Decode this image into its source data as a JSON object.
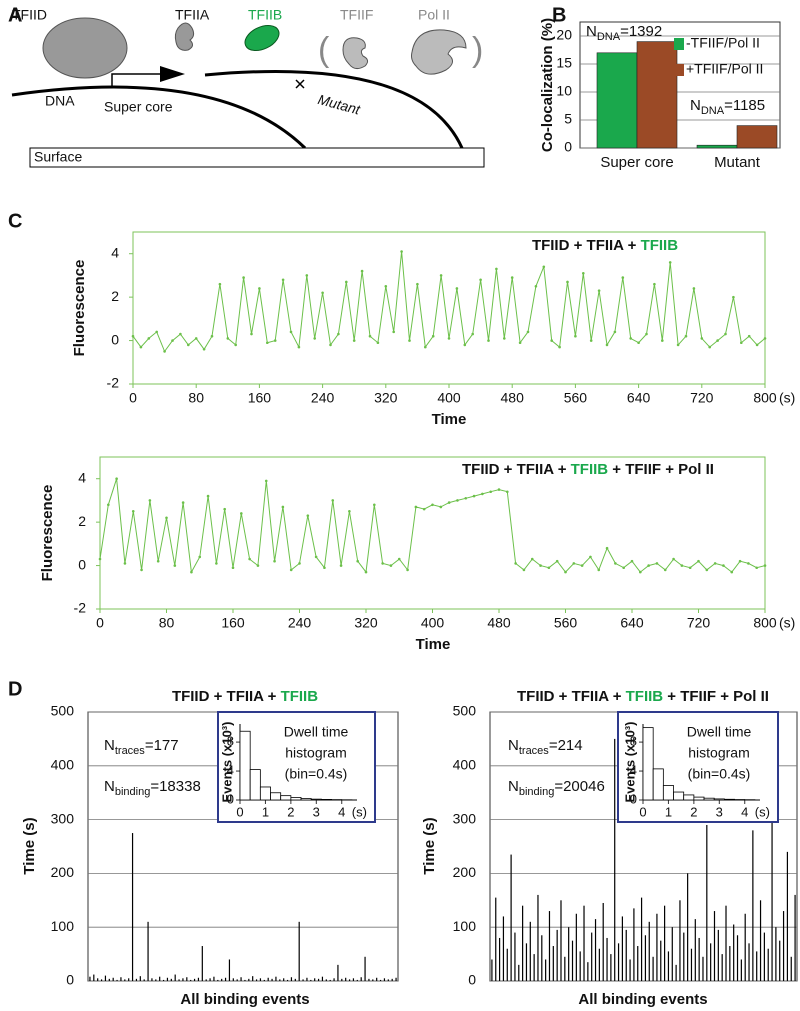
{
  "panel_labels": [
    "A",
    "B",
    "C",
    "D"
  ],
  "diagram": {
    "proteins": [
      {
        "text": "TFIID"
      },
      {
        "text": "TFIIA"
      },
      {
        "text": "TFIIB",
        "color": "#1aa84c"
      },
      {
        "text": "TFIIF",
        "color": "#8a8a8a"
      },
      {
        "text": "Pol II",
        "color": "#8a8a8a"
      }
    ],
    "brackets": [
      "(",
      ")"
    ],
    "dna": "DNA",
    "super_core": "Super core",
    "mutant": "Mutant",
    "surface": "Surface"
  },
  "chart_data": [
    {
      "type": "bar",
      "ylabel": "Co-localization (%)",
      "categories": [
        "Super core",
        "Mutant"
      ],
      "series": [
        {
          "name": "-TFIIF/Pol II",
          "color": "#1aa84c",
          "values": [
            17,
            0.5
          ]
        },
        {
          "name": "+TFIIF/Pol II",
          "color": "#9b4a26",
          "values": [
            19,
            4
          ]
        }
      ],
      "ylim": [
        0,
        22.5
      ],
      "yticks": [
        0,
        5,
        10,
        15,
        20
      ],
      "grid": true,
      "annotations": [
        [
          {
            "text": "N"
          },
          {
            "text": "DNA",
            "sub": true
          },
          {
            "text": "=1392"
          }
        ],
        [
          {
            "text": "N"
          },
          {
            "text": "DNA",
            "sub": true
          },
          {
            "text": "=1185"
          }
        ]
      ]
    },
    {
      "type": "line",
      "title": [
        {
          "text": "TFIID + TFIIA + "
        },
        {
          "text": "TFIIB",
          "color": "#1aa84c"
        }
      ],
      "xlabel": "Time",
      "ylabel": "Fluorescence",
      "x_unit": "(s)",
      "frame_color": "#7cc35a",
      "x": [
        0,
        10,
        20,
        30,
        40,
        50,
        60,
        70,
        80,
        90,
        100,
        110,
        120,
        130,
        140,
        150,
        160,
        170,
        180,
        190,
        200,
        210,
        220,
        230,
        240,
        250,
        260,
        270,
        280,
        290,
        300,
        310,
        320,
        330,
        340,
        350,
        360,
        370,
        380,
        390,
        400,
        410,
        420,
        430,
        440,
        450,
        460,
        470,
        480,
        490,
        500,
        510,
        520,
        530,
        540,
        550,
        560,
        570,
        580,
        590,
        600,
        610,
        620,
        630,
        640,
        650,
        660,
        670,
        680,
        690,
        700,
        710,
        720,
        730,
        740,
        750,
        760,
        770,
        780,
        790,
        800
      ],
      "series": [
        {
          "color": "#6cc04a",
          "values": [
            0.2,
            -0.3,
            0.1,
            0.4,
            -0.5,
            0.0,
            0.3,
            -0.2,
            0.1,
            -0.4,
            0.2,
            2.6,
            0.1,
            -0.2,
            2.9,
            0.3,
            2.4,
            -0.1,
            0.0,
            2.8,
            0.4,
            -0.3,
            3.0,
            0.1,
            2.2,
            -0.2,
            0.3,
            2.7,
            0.0,
            3.2,
            0.2,
            -0.1,
            2.5,
            0.4,
            4.1,
            0.0,
            2.6,
            -0.3,
            0.2,
            3.0,
            0.1,
            2.4,
            -0.2,
            0.3,
            2.8,
            0.0,
            3.3,
            0.1,
            2.9,
            -0.1,
            0.4,
            2.5,
            3.4,
            0.0,
            -0.3,
            2.7,
            0.2,
            3.1,
            0.0,
            2.3,
            -0.2,
            0.4,
            2.9,
            0.1,
            -0.1,
            0.3,
            2.6,
            0.0,
            3.6,
            -0.2,
            0.2,
            2.4,
            0.1,
            -0.3,
            0.0,
            0.3,
            2.0,
            -0.1,
            0.2,
            -0.2,
            0.1
          ]
        }
      ],
      "xlim": [
        0,
        800
      ],
      "xticks": [
        0,
        80,
        160,
        240,
        320,
        400,
        480,
        560,
        640,
        720,
        800
      ],
      "ylim": [
        -2,
        5
      ],
      "yticks": [
        -2,
        0,
        2,
        4
      ]
    },
    {
      "type": "line",
      "title": [
        {
          "text": "TFIID + TFIIA + "
        },
        {
          "text": "TFIIB",
          "color": "#1aa84c"
        },
        {
          "text": " + TFIIF + Pol II"
        }
      ],
      "xlabel": "Time",
      "ylabel": "Fluorescence",
      "x_unit": "(s)",
      "frame_color": "#7cc35a",
      "x": [
        0,
        10,
        20,
        30,
        40,
        50,
        60,
        70,
        80,
        90,
        100,
        110,
        120,
        130,
        140,
        150,
        160,
        170,
        180,
        190,
        200,
        210,
        220,
        230,
        240,
        250,
        260,
        270,
        280,
        290,
        300,
        310,
        320,
        330,
        340,
        350,
        360,
        370,
        380,
        390,
        400,
        410,
        420,
        430,
        440,
        450,
        460,
        470,
        480,
        490,
        500,
        510,
        520,
        530,
        540,
        550,
        560,
        570,
        580,
        590,
        600,
        610,
        620,
        630,
        640,
        650,
        660,
        670,
        680,
        690,
        700,
        710,
        720,
        730,
        740,
        750,
        760,
        770,
        780,
        790,
        800
      ],
      "series": [
        {
          "color": "#6cc04a",
          "values": [
            0.3,
            2.8,
            4.0,
            0.1,
            2.5,
            -0.2,
            3.0,
            0.2,
            2.2,
            0.0,
            2.9,
            -0.3,
            0.4,
            3.2,
            0.1,
            2.6,
            -0.1,
            2.4,
            0.3,
            0.0,
            3.9,
            0.2,
            2.7,
            -0.2,
            0.1,
            2.3,
            0.4,
            -0.1,
            3.0,
            0.0,
            2.5,
            0.2,
            -0.3,
            2.8,
            0.1,
            0.0,
            0.3,
            -0.2,
            2.7,
            2.6,
            2.8,
            2.7,
            2.9,
            3.0,
            3.1,
            3.2,
            3.3,
            3.4,
            3.5,
            3.4,
            0.1,
            -0.2,
            0.3,
            0.0,
            -0.1,
            0.2,
            -0.3,
            0.1,
            0.0,
            0.4,
            -0.2,
            0.8,
            0.1,
            -0.1,
            0.2,
            -0.3,
            0.0,
            0.1,
            -0.2,
            0.3,
            0.0,
            -0.1,
            0.2,
            -0.2,
            0.1,
            0.0,
            -0.3,
            0.2,
            0.1,
            -0.1,
            0.0
          ]
        }
      ],
      "xlim": [
        0,
        800
      ],
      "xticks": [
        0,
        80,
        160,
        240,
        320,
        400,
        480,
        560,
        640,
        720,
        800
      ],
      "ylim": [
        -2,
        5
      ],
      "yticks": [
        -2,
        0,
        2,
        4
      ]
    },
    {
      "type": "bar",
      "title": [
        {
          "text": "TFIID + TFIIA + "
        },
        {
          "text": "TFIIB",
          "color": "#1aa84c"
        }
      ],
      "xlabel": "All binding events",
      "ylabel": "Time (s)",
      "color": "#000000",
      "values": [
        8,
        12,
        5,
        3,
        10,
        4,
        6,
        2,
        7,
        3,
        5,
        275,
        4,
        9,
        3,
        110,
        5,
        3,
        8,
        2,
        6,
        4,
        12,
        3,
        5,
        7,
        2,
        4,
        6,
        65,
        3,
        5,
        8,
        2,
        4,
        6,
        40,
        5,
        3,
        7,
        2,
        4,
        9,
        3,
        5,
        2,
        6,
        4,
        8,
        3,
        5,
        2,
        7,
        4,
        110,
        3,
        6,
        2,
        5,
        4,
        8,
        3,
        2,
        5,
        30,
        4,
        6,
        3,
        5,
        2,
        7,
        45,
        4,
        3,
        6,
        2,
        5,
        3,
        4,
        6
      ],
      "ylim": [
        0,
        500
      ],
      "yticks": [
        0,
        100,
        200,
        300,
        400,
        500
      ],
      "grid": true,
      "annotations": [
        [
          {
            "text": "N"
          },
          {
            "text": "traces",
            "sub": true
          },
          {
            "text": "=177"
          }
        ],
        [
          {
            "text": "N"
          },
          {
            "text": "binding",
            "sub": true
          },
          {
            "text": "=18338"
          }
        ]
      ]
    },
    {
      "type": "histogram",
      "text_lines": [
        "Dwell time",
        "histogram",
        "(bin=0.4s)"
      ],
      "ylabel": "Events (x10³)",
      "x_unit": "(s)",
      "frame_color": "#2e3a8c",
      "bins": [
        0,
        0.4,
        0.8,
        1.2,
        1.6,
        2.0,
        2.4,
        2.8,
        3.2,
        3.6,
        4.0,
        4.4
      ],
      "counts": [
        9.5,
        4.2,
        1.8,
        1.0,
        0.6,
        0.35,
        0.2,
        0.12,
        0.08,
        0.05,
        0.03
      ],
      "xlim": [
        0,
        4.6
      ],
      "xticks": [
        0,
        1,
        2,
        3,
        4
      ],
      "ylim": [
        0,
        10.5
      ],
      "yticks": [
        0,
        4,
        8
      ]
    },
    {
      "type": "bar",
      "title": [
        {
          "text": "TFIID + TFIIA + "
        },
        {
          "text": "TFIIB",
          "color": "#1aa84c"
        },
        {
          "text": " + TFIIF + Pol II"
        }
      ],
      "xlabel": "All binding events",
      "ylabel": "Time (s)",
      "color": "#000000",
      "values": [
        40,
        155,
        80,
        120,
        60,
        235,
        90,
        30,
        140,
        70,
        110,
        50,
        160,
        85,
        40,
        130,
        65,
        95,
        150,
        45,
        100,
        75,
        125,
        55,
        140,
        35,
        90,
        115,
        60,
        145,
        80,
        50,
        450,
        70,
        120,
        95,
        40,
        135,
        65,
        155,
        85,
        110,
        45,
        125,
        75,
        140,
        55,
        100,
        30,
        150,
        90,
        200,
        60,
        115,
        80,
        45,
        290,
        70,
        130,
        95,
        50,
        140,
        65,
        105,
        85,
        40,
        125,
        70,
        280,
        55,
        150,
        90,
        60,
        340,
        100,
        75,
        130,
        240,
        45,
        160
      ],
      "ylim": [
        0,
        500
      ],
      "yticks": [
        0,
        100,
        200,
        300,
        400,
        500
      ],
      "grid": true,
      "annotations": [
        [
          {
            "text": "N"
          },
          {
            "text": "traces",
            "sub": true
          },
          {
            "text": "=214"
          }
        ],
        [
          {
            "text": "N"
          },
          {
            "text": "binding",
            "sub": true
          },
          {
            "text": "=20046"
          }
        ]
      ]
    },
    {
      "type": "histogram",
      "text_lines": [
        "Dwell time",
        "histogram",
        "(bin=0.4s)"
      ],
      "ylabel": "Events (x10³)",
      "x_unit": "(s)",
      "frame_color": "#2e3a8c",
      "bins": [
        0,
        0.4,
        0.8,
        1.2,
        1.6,
        2.0,
        2.4,
        2.8,
        3.2,
        3.6,
        4.0,
        4.4
      ],
      "counts": [
        10,
        4.3,
        2.0,
        1.1,
        0.7,
        0.4,
        0.25,
        0.15,
        0.1,
        0.06,
        0.04
      ],
      "xlim": [
        0,
        4.6
      ],
      "xticks": [
        0,
        1,
        2,
        3,
        4
      ],
      "ylim": [
        0,
        10.5
      ],
      "yticks": [
        0,
        4,
        8
      ]
    }
  ]
}
